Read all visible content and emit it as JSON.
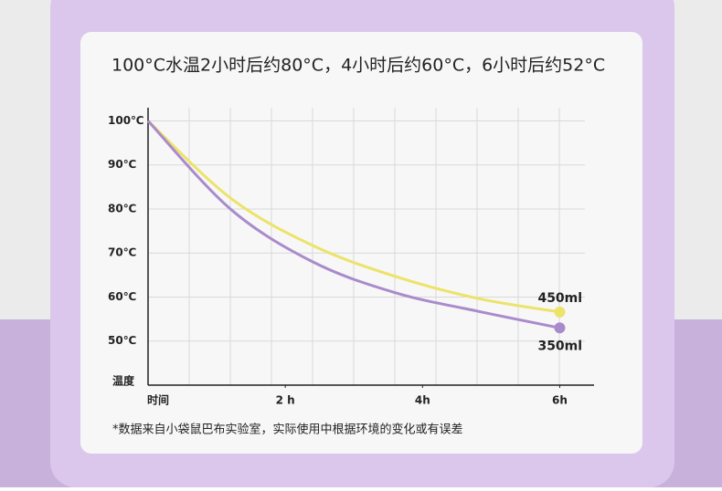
{
  "chart_data": {
    "type": "line",
    "title": "100°C水温2小时后约80°C，4小时后约60°C，6小时后约52°C",
    "y_label": "温度",
    "x_label": "时间",
    "x": [
      0,
      1.2,
      2.4,
      3.6,
      4.8,
      6
    ],
    "series": [
      {
        "name": "450ml",
        "color": "#ece36a",
        "values": [
          100,
          82.5,
          71.7,
          64.7,
          59.7,
          56.6
        ]
      },
      {
        "name": "350ml",
        "color": "#a98bcb",
        "values": [
          100,
          80,
          68,
          61,
          56.8,
          53
        ]
      }
    ],
    "xlim": [
      0,
      6.5
    ],
    "xticks": [
      {
        "value": 2,
        "label": "2 h"
      },
      {
        "value": 4,
        "label": "4h"
      },
      {
        "value": 6,
        "label": "6h"
      }
    ],
    "ylim": [
      40,
      103
    ],
    "yticks": [
      {
        "value": 50,
        "label": "50℃"
      },
      {
        "value": 60,
        "label": "60℃"
      },
      {
        "value": 70,
        "label": "70℃"
      },
      {
        "value": 80,
        "label": "80℃"
      },
      {
        "value": 90,
        "label": "90℃"
      },
      {
        "value": 100,
        "label": "100℃"
      }
    ],
    "grid": true,
    "footnote": "*数据来自小袋鼠巴布实验室，实际使用中根据环境的变化或有误差"
  }
}
